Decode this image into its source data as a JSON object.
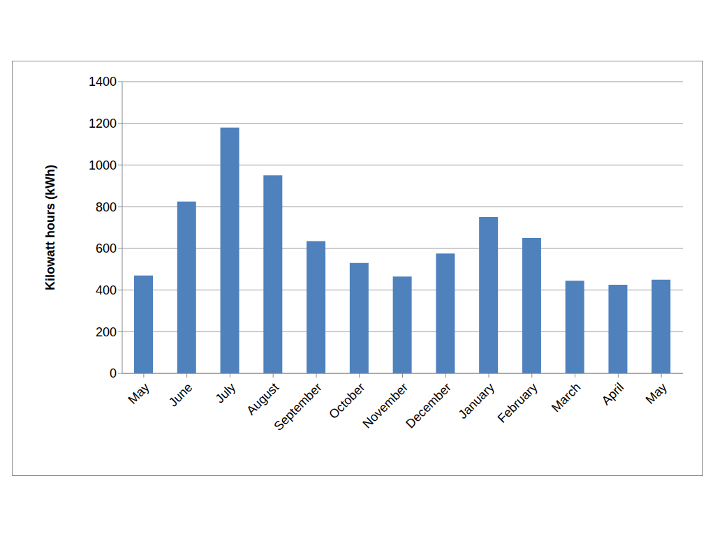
{
  "chart_data": {
    "type": "bar",
    "ylabel": "Kilowatt hours (kWh)",
    "categories": [
      "May",
      "June",
      "July",
      "August",
      "September",
      "October",
      "November",
      "December",
      "January",
      "February",
      "March",
      "April",
      "May"
    ],
    "values": [
      470,
      825,
      1180,
      950,
      635,
      530,
      465,
      575,
      750,
      650,
      445,
      425,
      450
    ],
    "color": "#4f81bd",
    "ylim": [
      0,
      1400
    ],
    "yticks": [
      0,
      200,
      400,
      600,
      800,
      1000,
      1200,
      1400
    ],
    "grid": true
  }
}
